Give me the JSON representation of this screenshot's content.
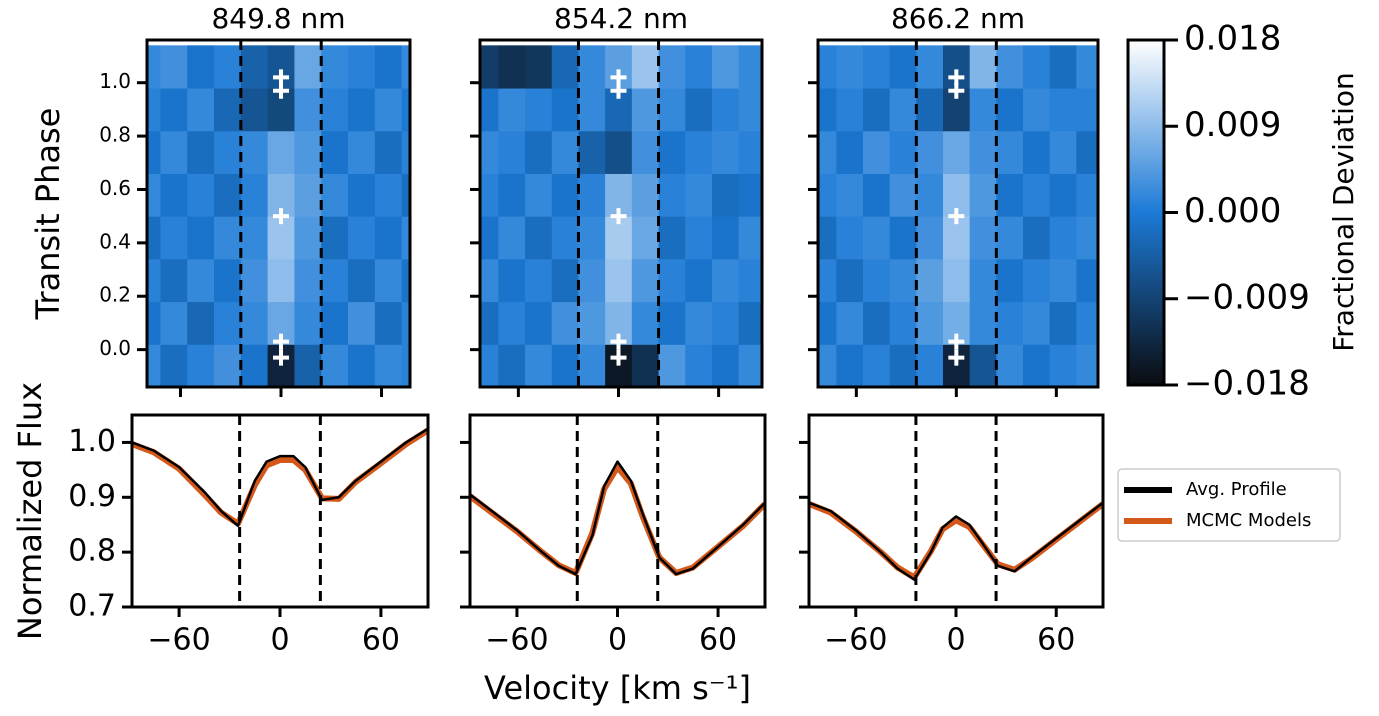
{
  "chart_data": [
    {
      "type": "heatmap",
      "title": "849.8 nm",
      "ylabel": "Transit Phase",
      "xlim": [
        -80,
        77
      ],
      "ylim": [
        -0.14,
        1.16
      ],
      "yticks": [
        {
          "value": 0,
          "label": "0.0"
        },
        0.2,
        0.4,
        0.6,
        0.8,
        {
          "value": 1,
          "label": "1.0"
        }
      ],
      "x": [
        -80,
        -64,
        -48,
        -32,
        -16,
        0,
        16,
        32,
        48,
        64,
        80
      ],
      "y": [
        -0.06,
        0.1,
        0.26,
        0.42,
        0.58,
        0.74,
        0.9,
        1.06
      ],
      "z": [
        [
          0.002,
          -0.002,
          0.001,
          0.003,
          -0.001,
          -0.014,
          -0.004,
          0.002,
          -0.001,
          0.002,
          0.001
        ],
        [
          -0.001,
          0.002,
          -0.003,
          0.001,
          0.002,
          0.006,
          0.002,
          -0.001,
          0.003,
          -0.002,
          0.001
        ],
        [
          0.001,
          -0.002,
          0.002,
          -0.001,
          0.003,
          0.009,
          0.003,
          0.001,
          -0.002,
          0.002,
          -0.001
        ],
        [
          -0.002,
          0.001,
          -0.001,
          0.002,
          0.002,
          0.01,
          0.004,
          -0.002,
          0.001,
          -0.001,
          0.002
        ],
        [
          0.002,
          -0.001,
          0.001,
          -0.002,
          0.001,
          0.008,
          0.005,
          0.002,
          -0.001,
          0.001,
          -0.002
        ],
        [
          -0.001,
          0.002,
          -0.002,
          0.001,
          0.002,
          0.006,
          0.004,
          -0.001,
          0.002,
          -0.002,
          0.001
        ],
        [
          0.001,
          -0.001,
          0.002,
          -0.003,
          -0.006,
          -0.008,
          0.003,
          0.001,
          -0.001,
          0.002,
          0.0
        ],
        [
          0.002,
          0.003,
          -0.001,
          0.001,
          -0.004,
          -0.006,
          0.006,
          0.002,
          0.001,
          -0.001,
          0.002
        ]
      ],
      "vlines": [
        -24,
        24
      ],
      "markers": {
        "x": [
          0,
          0,
          0,
          0,
          0
        ],
        "y": [
          -0.03,
          0.03,
          0.5,
          0.97,
          1.02
        ]
      }
    },
    {
      "type": "heatmap",
      "title": "854.2 nm",
      "xlim": [
        -83,
        86
      ],
      "ylim": [
        -0.14,
        1.16
      ],
      "x": [
        -80,
        -64,
        -48,
        -32,
        -16,
        0,
        16,
        32,
        48,
        64,
        80
      ],
      "y": [
        -0.06,
        0.1,
        0.26,
        0.42,
        0.58,
        0.74,
        0.9,
        1.06
      ],
      "z": [
        [
          0.001,
          -0.002,
          0.002,
          -0.001,
          0.002,
          -0.016,
          -0.012,
          0.004,
          0.001,
          -0.001,
          0.002
        ],
        [
          -0.002,
          0.001,
          -0.001,
          0.003,
          0.004,
          0.008,
          0.002,
          -0.001,
          0.002,
          0.001,
          -0.002
        ],
        [
          0.002,
          -0.001,
          0.001,
          -0.002,
          0.003,
          0.01,
          0.004,
          0.001,
          -0.001,
          0.002,
          0.001
        ],
        [
          -0.001,
          0.002,
          -0.002,
          0.001,
          0.002,
          0.011,
          0.006,
          -0.002,
          0.001,
          -0.001,
          0.002
        ],
        [
          0.001,
          -0.001,
          0.002,
          -0.001,
          0.001,
          0.008,
          0.005,
          0.001,
          0.002,
          -0.002,
          -0.001
        ],
        [
          0.002,
          0.001,
          -0.002,
          0.002,
          -0.004,
          -0.007,
          0.003,
          -0.001,
          0.001,
          0.002,
          0.001
        ],
        [
          -0.001,
          0.002,
          0.001,
          -0.001,
          0.002,
          -0.003,
          0.004,
          0.002,
          -0.002,
          0.001,
          0.002
        ],
        [
          -0.01,
          -0.012,
          -0.011,
          -0.003,
          0.002,
          0.005,
          0.01,
          0.003,
          0.001,
          0.004,
          0.002
        ]
      ],
      "vlines": [
        -24,
        24
      ],
      "markers": {
        "x": [
          0,
          0,
          0,
          0,
          0
        ],
        "y": [
          -0.03,
          0.03,
          0.5,
          0.97,
          1.02
        ]
      }
    },
    {
      "type": "heatmap",
      "title": "866.2 nm",
      "xlim": [
        -83,
        85
      ],
      "ylim": [
        -0.14,
        1.16
      ],
      "x": [
        -80,
        -64,
        -48,
        -32,
        -16,
        0,
        16,
        32,
        48,
        64,
        80
      ],
      "y": [
        -0.06,
        0.1,
        0.26,
        0.42,
        0.58,
        0.74,
        0.9,
        1.06
      ],
      "z": [
        [
          0.002,
          -0.001,
          0.001,
          -0.002,
          0.001,
          -0.014,
          -0.006,
          0.002,
          -0.001,
          0.001,
          0.002
        ],
        [
          -0.001,
          0.002,
          -0.002,
          0.001,
          0.004,
          0.007,
          0.002,
          0.001,
          0.002,
          -0.002,
          0.001
        ],
        [
          0.001,
          -0.002,
          0.001,
          0.002,
          0.005,
          0.009,
          0.002,
          -0.001,
          0.001,
          0.002,
          -0.001
        ],
        [
          -0.002,
          0.001,
          0.002,
          -0.001,
          0.003,
          0.01,
          0.003,
          0.002,
          -0.002,
          0.001,
          0.002
        ],
        [
          0.001,
          0.002,
          -0.001,
          0.003,
          0.002,
          0.009,
          0.004,
          -0.001,
          0.001,
          -0.001,
          0.001
        ],
        [
          0.002,
          -0.001,
          0.003,
          0.001,
          0.003,
          0.006,
          0.003,
          0.002,
          -0.001,
          0.002,
          -0.002
        ],
        [
          -0.001,
          0.001,
          -0.002,
          0.002,
          -0.003,
          -0.009,
          0.002,
          -0.001,
          0.002,
          0.001,
          0.001
        ],
        [
          0.001,
          0.002,
          0.001,
          -0.001,
          0.002,
          -0.007,
          0.008,
          0.003,
          0.001,
          -0.002,
          0.002
        ]
      ],
      "vlines": [
        -24,
        24
      ],
      "markers": {
        "x": [
          0,
          0,
          0,
          0,
          0
        ],
        "y": [
          -0.03,
          0.03,
          0.5,
          0.97,
          1.02
        ]
      },
      "colorbar": {
        "label": "Fractional Deviation",
        "lim": [
          -0.018,
          0.018
        ],
        "colormap": [
          "#0b0c10",
          "#1c7ad6",
          "#ffffff"
        ],
        "ticks": [
          {
            "value": -0.018,
            "label": "−0.018"
          },
          {
            "value": -0.009,
            "label": "−0.009"
          },
          {
            "value": 0,
            "label": "0.000"
          },
          0.009,
          0.018
        ]
      }
    },
    {
      "type": "line",
      "ylabel": "Normalized Flux",
      "xlim": [
        -88,
        88
      ],
      "ylim": [
        0.7,
        1.05
      ],
      "xticks": [
        {
          "value": -60,
          "label": "−60"
        },
        0,
        60
      ],
      "yticks": [
        0.7,
        0.8,
        0.9,
        {
          "value": 1,
          "label": "1.0"
        }
      ],
      "vlines": [
        -24,
        24
      ],
      "x": [
        -88,
        -75,
        -60,
        -45,
        -35,
        -25,
        -15,
        -8,
        0,
        8,
        15,
        25,
        35,
        45,
        60,
        75,
        88
      ],
      "series": [
        {
          "color": "#d4581a",
          "values": [
            0.997,
            0.982,
            0.952,
            0.905,
            0.872,
            0.852,
            0.922,
            0.958,
            0.968,
            0.968,
            0.95,
            0.898,
            0.897,
            0.928,
            0.962,
            0.997,
            1.022
          ]
        },
        {
          "color": "#000000",
          "values": [
            1.0,
            0.985,
            0.955,
            0.91,
            0.875,
            0.848,
            0.93,
            0.965,
            0.975,
            0.975,
            0.955,
            0.895,
            0.9,
            0.93,
            0.965,
            1.0,
            1.025
          ]
        }
      ]
    },
    {
      "type": "line",
      "xlabel": "Velocity [km s⁻¹]",
      "xlim": [
        -88,
        88
      ],
      "ylim": [
        0.7,
        1.05
      ],
      "xticks": [
        {
          "value": -60,
          "label": "−60"
        },
        0,
        60
      ],
      "vlines": [
        -24,
        24
      ],
      "x": [
        -88,
        -75,
        -60,
        -45,
        -35,
        -25,
        -15,
        -8,
        0,
        8,
        15,
        25,
        35,
        45,
        60,
        75,
        88
      ],
      "series": [
        {
          "color": "#d4581a",
          "values": [
            0.902,
            0.872,
            0.838,
            0.8,
            0.776,
            0.762,
            0.835,
            0.915,
            0.955,
            0.925,
            0.865,
            0.79,
            0.762,
            0.772,
            0.81,
            0.848,
            0.888
          ]
        },
        {
          "color": "#000000",
          "values": [
            0.905,
            0.875,
            0.84,
            0.8,
            0.775,
            0.76,
            0.83,
            0.92,
            0.965,
            0.93,
            0.87,
            0.79,
            0.76,
            0.77,
            0.81,
            0.85,
            0.89
          ]
        }
      ]
    },
    {
      "type": "line",
      "xlim": [
        -88,
        88
      ],
      "ylim": [
        0.7,
        1.05
      ],
      "xticks": [
        {
          "value": -60,
          "label": "−60"
        },
        0,
        60
      ],
      "vlines": [
        -24,
        24
      ],
      "x": [
        -88,
        -75,
        -60,
        -45,
        -35,
        -25,
        -15,
        -8,
        0,
        8,
        15,
        25,
        35,
        45,
        60,
        75,
        88
      ],
      "series": [
        {
          "name": "MCMC Models",
          "color": "#d4581a",
          "values": [
            0.888,
            0.872,
            0.838,
            0.8,
            0.772,
            0.754,
            0.802,
            0.842,
            0.858,
            0.846,
            0.818,
            0.778,
            0.768,
            0.788,
            0.823,
            0.858,
            0.888
          ]
        },
        {
          "name": "Avg. Profile",
          "color": "#000000",
          "values": [
            0.89,
            0.875,
            0.84,
            0.8,
            0.77,
            0.75,
            0.8,
            0.845,
            0.865,
            0.85,
            0.82,
            0.775,
            0.765,
            0.79,
            0.825,
            0.86,
            0.89
          ]
        }
      ]
    }
  ]
}
